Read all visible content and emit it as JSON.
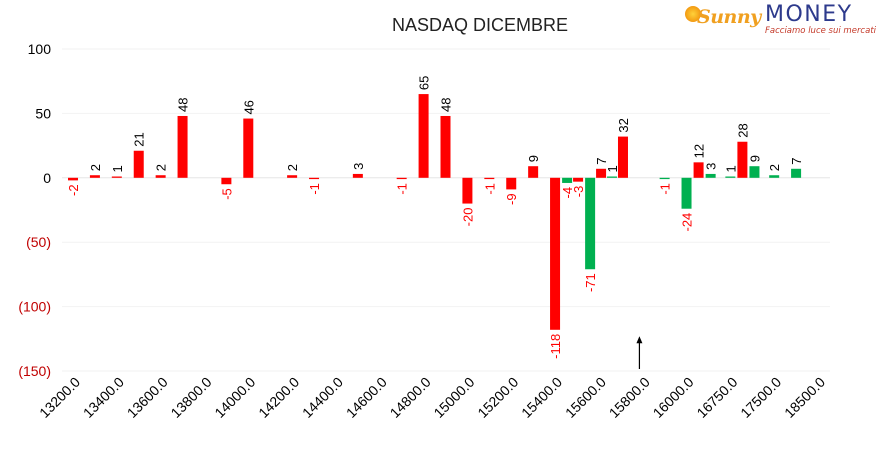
{
  "logo": {
    "brand_sunny": "Sunny",
    "brand_money": "MONEY",
    "tagline": "Facciamo luce sui mercati"
  },
  "colors": {
    "red": "#ff0000",
    "green": "#00b050",
    "axis_text": "#000000",
    "negative_tick_text": "#c00000",
    "grid": "#f2f2f2"
  },
  "chart_data": {
    "type": "bar",
    "title": "NASDAQ DICEMBRE",
    "xlabel": "",
    "ylabel": "",
    "ylim": [
      -150,
      100
    ],
    "yticks": [
      {
        "value": 100,
        "label": "100",
        "negative": false
      },
      {
        "value": 50,
        "label": "50",
        "negative": false
      },
      {
        "value": 0,
        "label": "0",
        "negative": false
      },
      {
        "value": -50,
        "label": "(50)",
        "negative": true
      },
      {
        "value": -100,
        "label": "(100)",
        "negative": true
      },
      {
        "value": -150,
        "label": "(150)",
        "negative": true
      }
    ],
    "grid": true,
    "x_tick_labels": [
      {
        "label": "13200.0",
        "slot": 0
      },
      {
        "label": "13400.0",
        "slot": 2
      },
      {
        "label": "13600.0",
        "slot": 4
      },
      {
        "label": "13800.0",
        "slot": 6
      },
      {
        "label": "14000.0",
        "slot": 8
      },
      {
        "label": "14200.0",
        "slot": 10
      },
      {
        "label": "14400.0",
        "slot": 12
      },
      {
        "label": "14600.0",
        "slot": 14
      },
      {
        "label": "14800.0",
        "slot": 16
      },
      {
        "label": "15000.0",
        "slot": 18
      },
      {
        "label": "15200.0",
        "slot": 20
      },
      {
        "label": "15400.0",
        "slot": 22
      },
      {
        "label": "15600.0",
        "slot": 24
      },
      {
        "label": "15800.0",
        "slot": 26
      },
      {
        "label": "16000.0",
        "slot": 28
      },
      {
        "label": "16750.0",
        "slot": 30
      },
      {
        "label": "17500.0",
        "slot": 32
      },
      {
        "label": "18500.0",
        "slot": 34
      }
    ],
    "total_slots": 34,
    "bars": [
      {
        "slot": 0,
        "series": "red",
        "value": -2,
        "label": "-2"
      },
      {
        "slot": 1,
        "series": "red",
        "value": 2,
        "label": "2"
      },
      {
        "slot": 2,
        "series": "red",
        "value": 1,
        "label": "1"
      },
      {
        "slot": 3,
        "series": "red",
        "value": 21,
        "label": "21"
      },
      {
        "slot": 4,
        "series": "red",
        "value": 2,
        "label": "2"
      },
      {
        "slot": 5,
        "series": "red",
        "value": 48,
        "label": "48"
      },
      {
        "slot": 7,
        "series": "red",
        "value": -5,
        "label": "-5"
      },
      {
        "slot": 8,
        "series": "red",
        "value": 46,
        "label": "46"
      },
      {
        "slot": 10,
        "series": "red",
        "value": 2,
        "label": "2"
      },
      {
        "slot": 11,
        "series": "red",
        "value": -1,
        "label": "-1"
      },
      {
        "slot": 13,
        "series": "red",
        "value": 3,
        "label": "3"
      },
      {
        "slot": 15,
        "series": "red",
        "value": -1,
        "label": "-1"
      },
      {
        "slot": 16,
        "series": "red",
        "value": 65,
        "label": "65"
      },
      {
        "slot": 17,
        "series": "red",
        "value": 48,
        "label": "48"
      },
      {
        "slot": 18,
        "series": "red",
        "value": -20,
        "label": "-20"
      },
      {
        "slot": 19,
        "series": "red",
        "value": -1,
        "label": "-1"
      },
      {
        "slot": 20,
        "series": "red",
        "value": -9,
        "label": "-9"
      },
      {
        "slot": 21,
        "series": "red",
        "value": 9,
        "label": "9"
      },
      {
        "slot": 22,
        "series": "red",
        "value": -118,
        "label": "-118"
      },
      {
        "slot": 22.55,
        "series": "green",
        "value": -4,
        "label": "-4"
      },
      {
        "slot": 23.05,
        "series": "red",
        "value": -3,
        "label": "-3"
      },
      {
        "slot": 23.6,
        "series": "green",
        "value": -71,
        "label": "-71"
      },
      {
        "slot": 24.1,
        "series": "red",
        "value": 7,
        "label": "7"
      },
      {
        "slot": 24.6,
        "series": "green",
        "value": 1,
        "label": "1"
      },
      {
        "slot": 25.1,
        "series": "red",
        "value": 32,
        "label": "32"
      },
      {
        "slot": 27,
        "series": "green",
        "value": -1,
        "label": "-1"
      },
      {
        "slot": 28,
        "series": "green",
        "value": -24,
        "label": "-24"
      },
      {
        "slot": 28.55,
        "series": "red",
        "value": 12,
        "label": "12"
      },
      {
        "slot": 29.1,
        "series": "green",
        "value": 3,
        "label": "3"
      },
      {
        "slot": 30,
        "series": "green",
        "value": 1,
        "label": "1"
      },
      {
        "slot": 30.55,
        "series": "red",
        "value": 28,
        "label": "28"
      },
      {
        "slot": 31.1,
        "series": "green",
        "value": 9,
        "label": "9"
      },
      {
        "slot": 32,
        "series": "green",
        "value": 2,
        "label": "2"
      },
      {
        "slot": 33,
        "series": "green",
        "value": 7,
        "label": "7"
      }
    ],
    "annotations": [
      {
        "type": "arrow",
        "at_slot": 25.85,
        "from_value": -150,
        "to_value": -123
      }
    ]
  }
}
